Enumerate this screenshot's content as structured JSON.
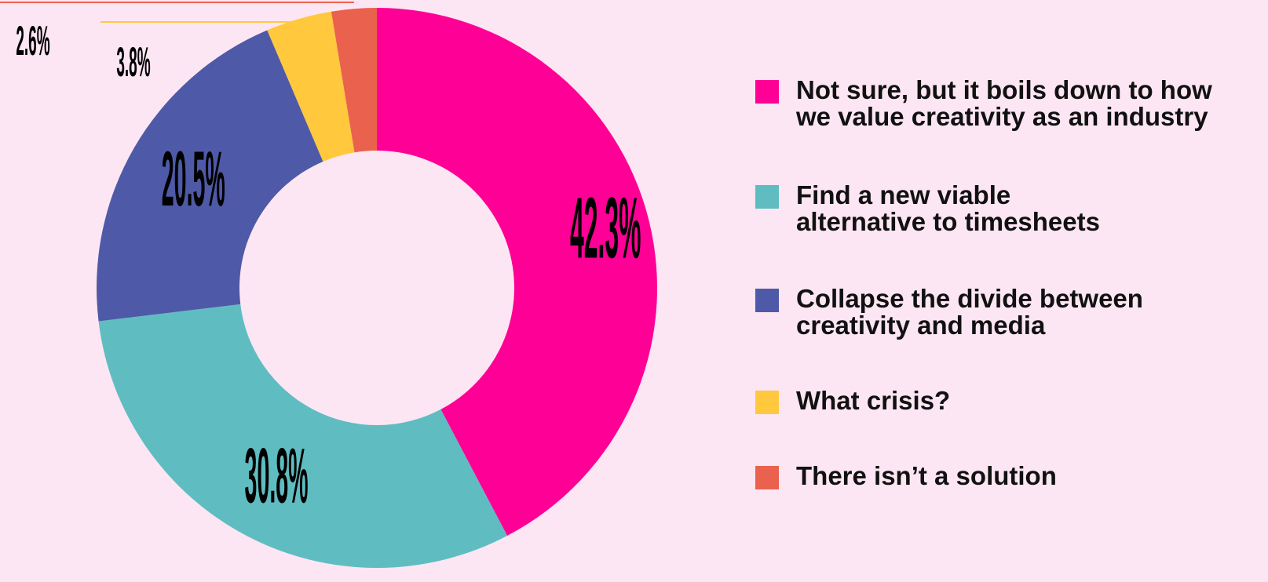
{
  "chart_data": {
    "type": "pie",
    "donut": true,
    "labels": [
      "Not sure, but it boils down to how\nwe value creativity as an industry",
      "Find a new viable\nalternative to timesheets",
      "Collapse the divide between\ncreativity and media",
      "What crisis?",
      "There isn’t a solution"
    ],
    "values": [
      42.3,
      30.8,
      20.5,
      3.8,
      2.6
    ],
    "value_labels": [
      "42.3%",
      "30.8%",
      "20.5%",
      "3.8%",
      "2.6%"
    ],
    "colors": [
      "#ff0096",
      "#5fbdc1",
      "#4e5aa7",
      "#ffc83d",
      "#ea614e"
    ],
    "legend_position": "right",
    "background": "#fde6f3"
  }
}
